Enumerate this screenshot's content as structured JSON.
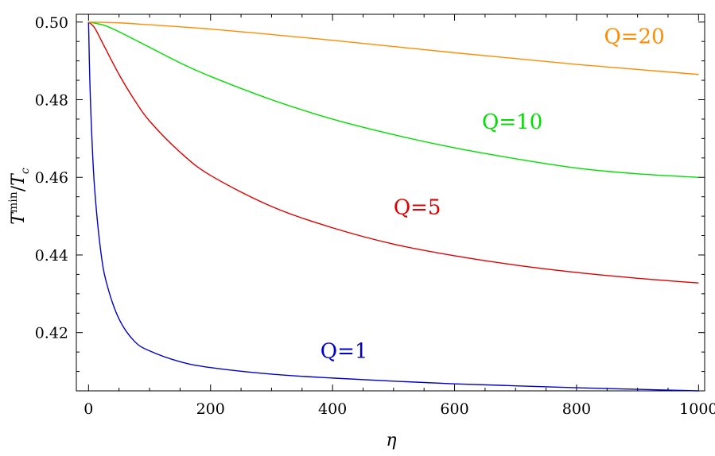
{
  "chart_data": {
    "type": "line",
    "title": "",
    "xlabel": "η",
    "ylabel_main": "T",
    "ylabel_sup": "min",
    "ylabel_sep": "/",
    "ylabel_denom": "T",
    "ylabel_sub": "c",
    "xlim": [
      -20,
      1010
    ],
    "ylim": [
      0.405,
      0.502
    ],
    "xticks": [
      0,
      200,
      400,
      600,
      800,
      1000
    ],
    "xtick_labels": [
      "0",
      "200",
      "400",
      "600",
      "800",
      "1000"
    ],
    "yticks": [
      0.42,
      0.44,
      0.46,
      0.48,
      0.5
    ],
    "ytick_labels": [
      "0.42",
      "0.44",
      "0.46",
      "0.48",
      "0.50"
    ],
    "grid": false,
    "series": [
      {
        "name": "Q=1",
        "color": "#0000cc",
        "label_at": [
          380,
          0.4135
        ],
        "x": [
          0,
          2,
          5,
          10,
          20,
          30,
          50,
          75,
          100,
          150,
          200,
          300,
          400,
          500,
          600,
          700,
          800,
          900,
          1000
        ],
        "y": [
          0.5,
          0.4855,
          0.472,
          0.457,
          0.441,
          0.4325,
          0.4235,
          0.4178,
          0.4153,
          0.4125,
          0.411,
          0.4093,
          0.4083,
          0.4075,
          0.4068,
          0.4063,
          0.4058,
          0.4054,
          0.405
        ]
      },
      {
        "name": "Q=5",
        "color": "#dd0000",
        "label_at": [
          500,
          0.4505
        ],
        "x": [
          0,
          10,
          25,
          50,
          75,
          100,
          150,
          200,
          300,
          400,
          500,
          600,
          700,
          800,
          900,
          1000
        ],
        "y": [
          0.5,
          0.4985,
          0.494,
          0.4865,
          0.48,
          0.4745,
          0.4665,
          0.4605,
          0.4525,
          0.447,
          0.4428,
          0.4398,
          0.4374,
          0.4355,
          0.434,
          0.4328
        ]
      },
      {
        "name": "Q=10",
        "color": "#00dd00",
        "label_at": [
          645,
          0.4725
        ],
        "x": [
          0,
          25,
          50,
          100,
          150,
          200,
          300,
          400,
          500,
          600,
          700,
          800,
          900,
          1000
        ],
        "y": [
          0.5,
          0.4992,
          0.4975,
          0.4935,
          0.4895,
          0.486,
          0.48,
          0.475,
          0.471,
          0.4676,
          0.4648,
          0.4624,
          0.4609,
          0.46
        ]
      },
      {
        "name": "Q=20",
        "color": "#ff8c00",
        "label_at": [
          845,
          0.4945
        ],
        "x": [
          0,
          50,
          100,
          200,
          300,
          400,
          500,
          600,
          700,
          800,
          900,
          1000
        ],
        "y": [
          0.5,
          0.4998,
          0.4993,
          0.4982,
          0.4968,
          0.4953,
          0.4937,
          0.4921,
          0.4906,
          0.4891,
          0.4878,
          0.4865
        ]
      }
    ]
  }
}
